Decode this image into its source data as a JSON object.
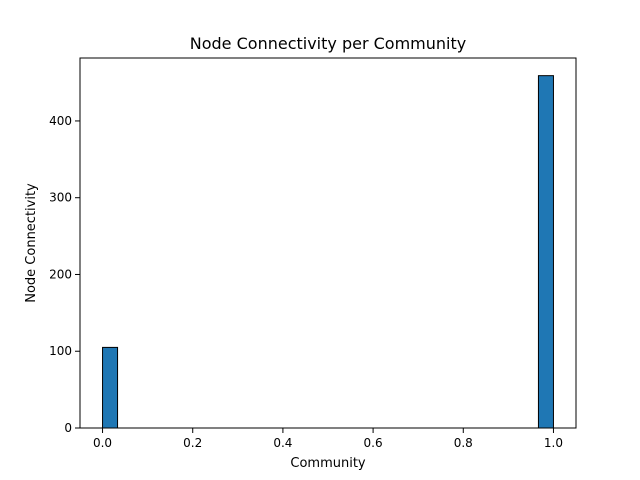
{
  "chart_data": {
    "type": "bar",
    "title": "Node Connectivity per Community",
    "xlabel": "Community",
    "ylabel": "Node Connectivity",
    "xlim": [
      -0.05,
      1.05
    ],
    "ylim": [
      0,
      482
    ],
    "xticks": [
      0.0,
      0.2,
      0.4,
      0.6,
      0.8,
      1.0
    ],
    "xtick_labels": [
      "0.0",
      "0.2",
      "0.4",
      "0.6",
      "0.8",
      "1.0"
    ],
    "yticks": [
      0,
      100,
      200,
      300,
      400
    ],
    "ytick_labels": [
      "0",
      "100",
      "200",
      "300",
      "400"
    ],
    "bin_width": 0.0333,
    "bars": [
      {
        "x_start": 0.0,
        "x_end": 0.0333,
        "value": 105
      },
      {
        "x_start": 0.9667,
        "x_end": 1.0,
        "value": 459
      }
    ],
    "grid": false,
    "colors": {
      "bar": "#1f77b4",
      "edge": "#000000"
    }
  }
}
